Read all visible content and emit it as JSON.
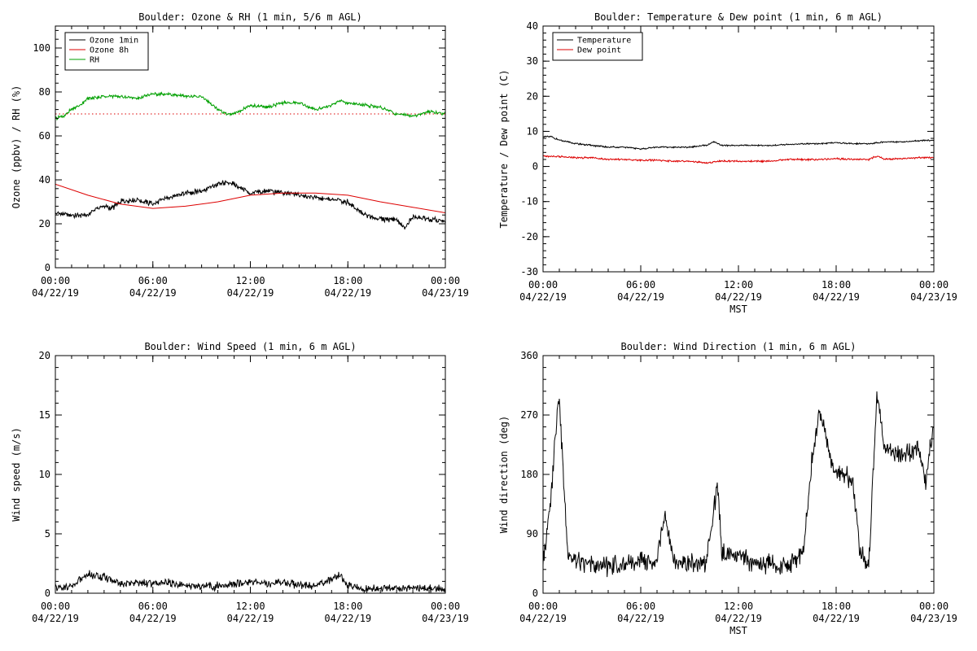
{
  "chart_data": [
    {
      "type": "line",
      "title": "Boulder: Ozone & RH (1 min, 5/6 m AGL)",
      "ylabel": "Ozone (ppbv) / RH (%)",
      "xlabel": "",
      "ylim": [
        0,
        110
      ],
      "yticks": [
        0,
        20,
        40,
        60,
        80,
        100
      ],
      "xlim": [
        0,
        24
      ],
      "x_tick_labels": [
        {
          "time": "00:00",
          "date": "04/22/19"
        },
        {
          "time": "06:00",
          "date": "04/22/19"
        },
        {
          "time": "12:00",
          "date": "04/22/19"
        },
        {
          "time": "18:00",
          "date": "04/22/19"
        },
        {
          "time": "00:00",
          "date": "04/23/19"
        }
      ],
      "legend": "top-left",
      "grid": false,
      "series": [
        {
          "name": "Ozone 1min",
          "color": "#000000",
          "style": "solid",
          "noise": 1.5,
          "x": [
            0,
            1,
            2,
            2.5,
            3,
            3.5,
            4,
            5,
            6,
            7,
            8,
            9,
            10,
            10.5,
            11,
            11.5,
            12,
            13,
            14,
            15,
            16,
            17,
            18,
            19,
            20,
            21,
            21.5,
            22,
            23,
            24
          ],
          "y": [
            25,
            24,
            24,
            27,
            28,
            27,
            30,
            31,
            29,
            32,
            34,
            35,
            38,
            39,
            38,
            36,
            34,
            35,
            34,
            33,
            32,
            31,
            30,
            24,
            22,
            22,
            18,
            23,
            22,
            21
          ]
        },
        {
          "name": "Ozone 8h",
          "color": "#dd0000",
          "style": "solid",
          "noise": 0,
          "x": [
            0,
            2,
            4,
            6,
            8,
            10,
            12,
            14,
            16,
            18,
            20,
            22,
            24
          ],
          "y": [
            38,
            33,
            29,
            27,
            28,
            30,
            33,
            34,
            34,
            33,
            30,
            27.5,
            25
          ]
        },
        {
          "name": "",
          "color": "#dd0000",
          "style": "dotted",
          "noise": 0,
          "x": [
            0,
            24
          ],
          "y": [
            70,
            70
          ]
        },
        {
          "name": "RH",
          "color": "#00a000",
          "style": "solid",
          "noise": 0.9,
          "x": [
            0,
            0.5,
            1,
            1.5,
            2,
            3,
            4,
            5,
            6,
            7,
            8,
            9,
            10,
            10.5,
            11,
            12,
            13,
            14,
            15,
            16,
            17,
            17.5,
            18,
            19,
            20,
            21,
            22,
            23,
            24
          ],
          "y": [
            68,
            69,
            72,
            74,
            77,
            78,
            78,
            77,
            79,
            79,
            78,
            78,
            72,
            70,
            70,
            74,
            73,
            75,
            75,
            72,
            74,
            76,
            75,
            74,
            73,
            70,
            69,
            71,
            70
          ]
        }
      ]
    },
    {
      "type": "line",
      "title": "Boulder: Temperature & Dew point (1 min, 6 m AGL)",
      "ylabel": "Temperature / Dew point (C)",
      "xlabel": "MST",
      "ylim": [
        -30,
        40
      ],
      "yticks": [
        -30,
        -20,
        -10,
        0,
        10,
        20,
        30,
        40
      ],
      "xlim": [
        0,
        24
      ],
      "x_tick_labels": [
        {
          "time": "00:00",
          "date": "04/22/19"
        },
        {
          "time": "06:00",
          "date": "04/22/19"
        },
        {
          "time": "12:00",
          "date": "04/22/19"
        },
        {
          "time": "18:00",
          "date": "04/22/19"
        },
        {
          "time": "00:00",
          "date": "04/23/19"
        }
      ],
      "legend": "top-left",
      "grid": false,
      "series": [
        {
          "name": "Temperature",
          "color": "#000000",
          "style": "solid",
          "noise": 0.25,
          "x": [
            0,
            0.5,
            1,
            2,
            3,
            4,
            5,
            6,
            7,
            8,
            9,
            10,
            10.5,
            11,
            12,
            13,
            14,
            15,
            16,
            17,
            18,
            19,
            20,
            21,
            22,
            23,
            24
          ],
          "y": [
            8.5,
            8.5,
            7.5,
            6.5,
            6,
            5.5,
            5.5,
            5,
            5.5,
            5.5,
            5.5,
            6,
            7,
            6,
            6,
            6,
            6,
            6.2,
            6.5,
            6.5,
            6.8,
            6.5,
            6.5,
            7,
            7,
            7.3,
            7.5
          ]
        },
        {
          "name": "Dew point",
          "color": "#dd0000",
          "style": "solid",
          "noise": 0.3,
          "x": [
            0,
            1,
            2,
            3,
            4,
            5,
            6,
            7,
            8,
            9,
            10,
            11,
            12,
            13,
            14,
            15,
            16,
            17,
            18,
            19,
            20,
            20.5,
            21,
            22,
            23,
            24
          ],
          "y": [
            3,
            2.8,
            2.5,
            2.5,
            2,
            2,
            1.8,
            1.8,
            1.5,
            1.5,
            1,
            1.5,
            1.5,
            1.5,
            1.5,
            2,
            2,
            2,
            2.2,
            2,
            2,
            3,
            2,
            2.2,
            2.5,
            2.5
          ]
        }
      ]
    },
    {
      "type": "line",
      "title": "Boulder: Wind Speed (1 min, 6 m AGL)",
      "ylabel": "Wind speed (m/s)",
      "xlabel": "",
      "ylim": [
        0,
        20
      ],
      "yticks": [
        0,
        5,
        10,
        15,
        20
      ],
      "xlim": [
        0,
        24
      ],
      "x_tick_labels": [
        {
          "time": "00:00",
          "date": "04/22/19"
        },
        {
          "time": "06:00",
          "date": "04/22/19"
        },
        {
          "time": "12:00",
          "date": "04/22/19"
        },
        {
          "time": "18:00",
          "date": "04/22/19"
        },
        {
          "time": "00:00",
          "date": "04/23/19"
        }
      ],
      "legend": "none",
      "grid": false,
      "series": [
        {
          "name": "",
          "color": "#000000",
          "style": "solid",
          "noise": 0.4,
          "x": [
            0,
            1,
            2,
            3,
            4,
            5,
            6,
            7,
            8,
            9,
            10,
            11,
            12,
            13,
            14,
            15,
            16,
            17,
            17.5,
            18,
            19,
            20,
            21,
            22,
            23,
            24
          ],
          "y": [
            0.5,
            0.6,
            1.6,
            1.4,
            0.8,
            0.9,
            0.8,
            0.9,
            0.7,
            0.6,
            0.6,
            0.8,
            1.0,
            0.8,
            0.9,
            0.7,
            0.6,
            1.2,
            1.5,
            0.7,
            0.3,
            0.4,
            0.4,
            0.5,
            0.4,
            0.3
          ]
        }
      ]
    },
    {
      "type": "line",
      "title": "Boulder: Wind Direction (1 min, 6 m AGL)",
      "ylabel": "Wind direction (deg)",
      "xlabel": "MST",
      "ylim": [
        0,
        360
      ],
      "yticks": [
        0,
        90,
        180,
        270,
        360
      ],
      "xlim": [
        0,
        24
      ],
      "x_tick_labels": [
        {
          "time": "00:00",
          "date": "04/22/19"
        },
        {
          "time": "06:00",
          "date": "04/22/19"
        },
        {
          "time": "12:00",
          "date": "04/22/19"
        },
        {
          "time": "18:00",
          "date": "04/22/19"
        },
        {
          "time": "00:00",
          "date": "04/23/19"
        }
      ],
      "legend": "none",
      "grid": false,
      "series": [
        {
          "name": "",
          "color": "#000000",
          "style": "solid",
          "noise": 18,
          "x": [
            0,
            0.5,
            0.8,
            1,
            1.3,
            1.5,
            2,
            3,
            4,
            5,
            6,
            7,
            7.5,
            8,
            9,
            10,
            10.7,
            11,
            12,
            13,
            14,
            15,
            16,
            16.5,
            17,
            17.5,
            18,
            18.5,
            19,
            19.5,
            20,
            20.5,
            21,
            22,
            23,
            23.5,
            24
          ],
          "y": [
            40,
            150,
            250,
            300,
            150,
            60,
            50,
            45,
            40,
            45,
            50,
            50,
            120,
            50,
            45,
            45,
            160,
            60,
            60,
            45,
            45,
            40,
            60,
            200,
            280,
            220,
            180,
            180,
            170,
            60,
            40,
            300,
            220,
            210,
            220,
            170,
            260
          ]
        }
      ]
    }
  ]
}
